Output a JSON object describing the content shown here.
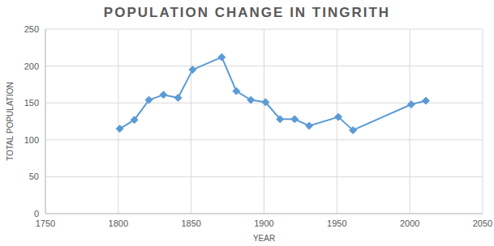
{
  "chart_data": {
    "type": "line",
    "title": "POPULATION CHANGE IN TINGRITH",
    "x_label": "YEAR",
    "y_label": "TOTAL POPULATION",
    "x": [
      1801,
      1811,
      1821,
      1831,
      1841,
      1851,
      1871,
      1881,
      1891,
      1901,
      1911,
      1921,
      1931,
      1951,
      1961,
      2001,
      2011
    ],
    "values": [
      115,
      127,
      154,
      161,
      157,
      195,
      212,
      166,
      154,
      151,
      128,
      128,
      119,
      131,
      113,
      148,
      153
    ],
    "color": "#5b9bd5",
    "marker": "diamond",
    "xlim": [
      1750,
      2050
    ],
    "xticks": [
      1750,
      1800,
      1850,
      1900,
      1950,
      2000,
      2050
    ],
    "ylim": [
      0,
      250
    ],
    "yticks": [
      0,
      50,
      100,
      150,
      200,
      250
    ],
    "grid": true
  }
}
